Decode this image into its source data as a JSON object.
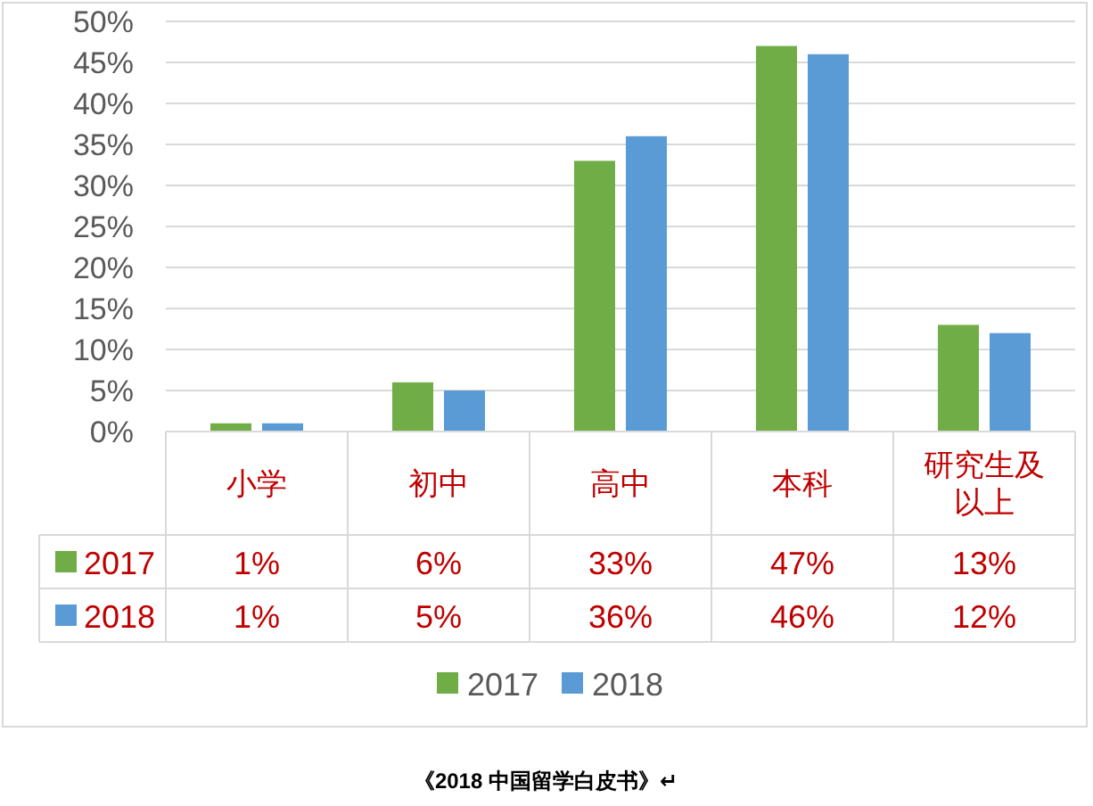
{
  "chart_data": {
    "type": "bar",
    "categories": [
      "小学",
      "初中",
      "高中",
      "本科",
      "研究生及以上"
    ],
    "series": [
      {
        "name": "2017",
        "color": "#70ad47",
        "values": [
          1,
          6,
          33,
          47,
          13
        ],
        "value_labels": [
          "1%",
          "6%",
          "33%",
          "47%",
          "13%"
        ]
      },
      {
        "name": "2018",
        "color": "#5b9bd5",
        "values": [
          1,
          5,
          36,
          46,
          12
        ],
        "value_labels": [
          "1%",
          "5%",
          "36%",
          "46%",
          "12%"
        ]
      }
    ],
    "ylim": [
      0,
      50
    ],
    "yticks": [
      {
        "value": 0,
        "label": "0%"
      },
      {
        "value": 5,
        "label": "5%"
      },
      {
        "value": 10,
        "label": "10%"
      },
      {
        "value": 15,
        "label": "15%"
      },
      {
        "value": 20,
        "label": "20%"
      },
      {
        "value": 25,
        "label": "25%"
      },
      {
        "value": 30,
        "label": "30%"
      },
      {
        "value": 35,
        "label": "35%"
      },
      {
        "value": 40,
        "label": "40%"
      },
      {
        "value": 45,
        "label": "45%"
      },
      {
        "value": 50,
        "label": "50%"
      }
    ],
    "grid": "y",
    "legend": "bottom",
    "annotations": [
      "《2018 中国留学白皮书》↵"
    ]
  }
}
